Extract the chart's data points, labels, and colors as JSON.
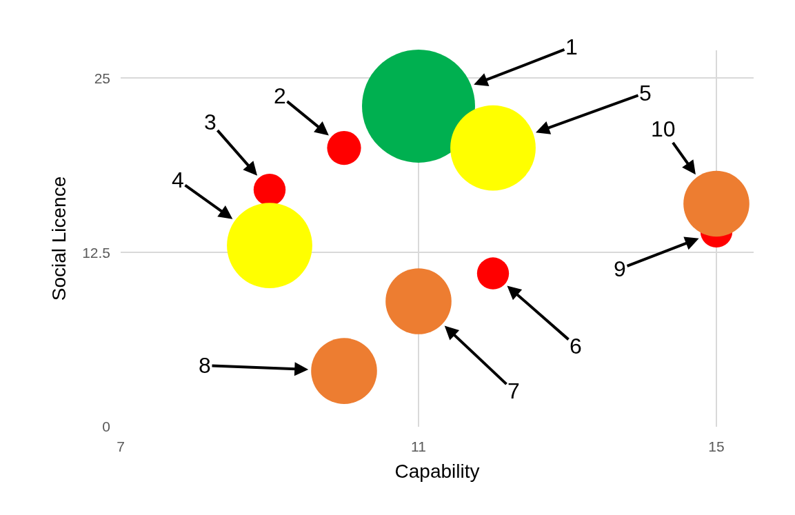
{
  "chart_data": {
    "type": "bubble",
    "xlabel": "Capability",
    "ylabel": "Social Licence",
    "x": [
      11,
      10,
      9,
      9,
      12,
      12,
      11,
      10,
      15,
      15
    ],
    "values": [
      23,
      20,
      17,
      13,
      20,
      11,
      9,
      4,
      14,
      16
    ],
    "sizes": [
      1,
      0.09,
      0.08,
      0.57,
      0.57,
      0.08,
      0.34,
      0.34,
      0.08,
      0.34
    ],
    "colors": [
      "#00b050",
      "#ff0000",
      "#ff0000",
      "#ffff00",
      "#ffff00",
      "#ff0000",
      "#ed7d31",
      "#ed7d31",
      "#ff0000",
      "#ed7d31"
    ],
    "xlim": [
      7,
      15.5
    ],
    "xticks": [
      7,
      11,
      15
    ],
    "ylim": [
      0,
      27
    ],
    "yticks": [
      0,
      12.5,
      25
    ],
    "grid": true,
    "annotations": [
      {
        "text": "1",
        "x": 11,
        "y": 23
      },
      {
        "text": "2",
        "x": 10,
        "y": 20
      },
      {
        "text": "3",
        "x": 9,
        "y": 17
      },
      {
        "text": "4",
        "x": 9,
        "y": 13
      },
      {
        "text": "5",
        "x": 12,
        "y": 20
      },
      {
        "text": "6",
        "x": 12,
        "y": 11
      },
      {
        "text": "7",
        "x": 11,
        "y": 9
      },
      {
        "text": "8",
        "x": 10,
        "y": 4
      },
      {
        "text": "9",
        "x": 15,
        "y": 14
      },
      {
        "text": "10",
        "x": 15,
        "y": 16
      }
    ]
  }
}
